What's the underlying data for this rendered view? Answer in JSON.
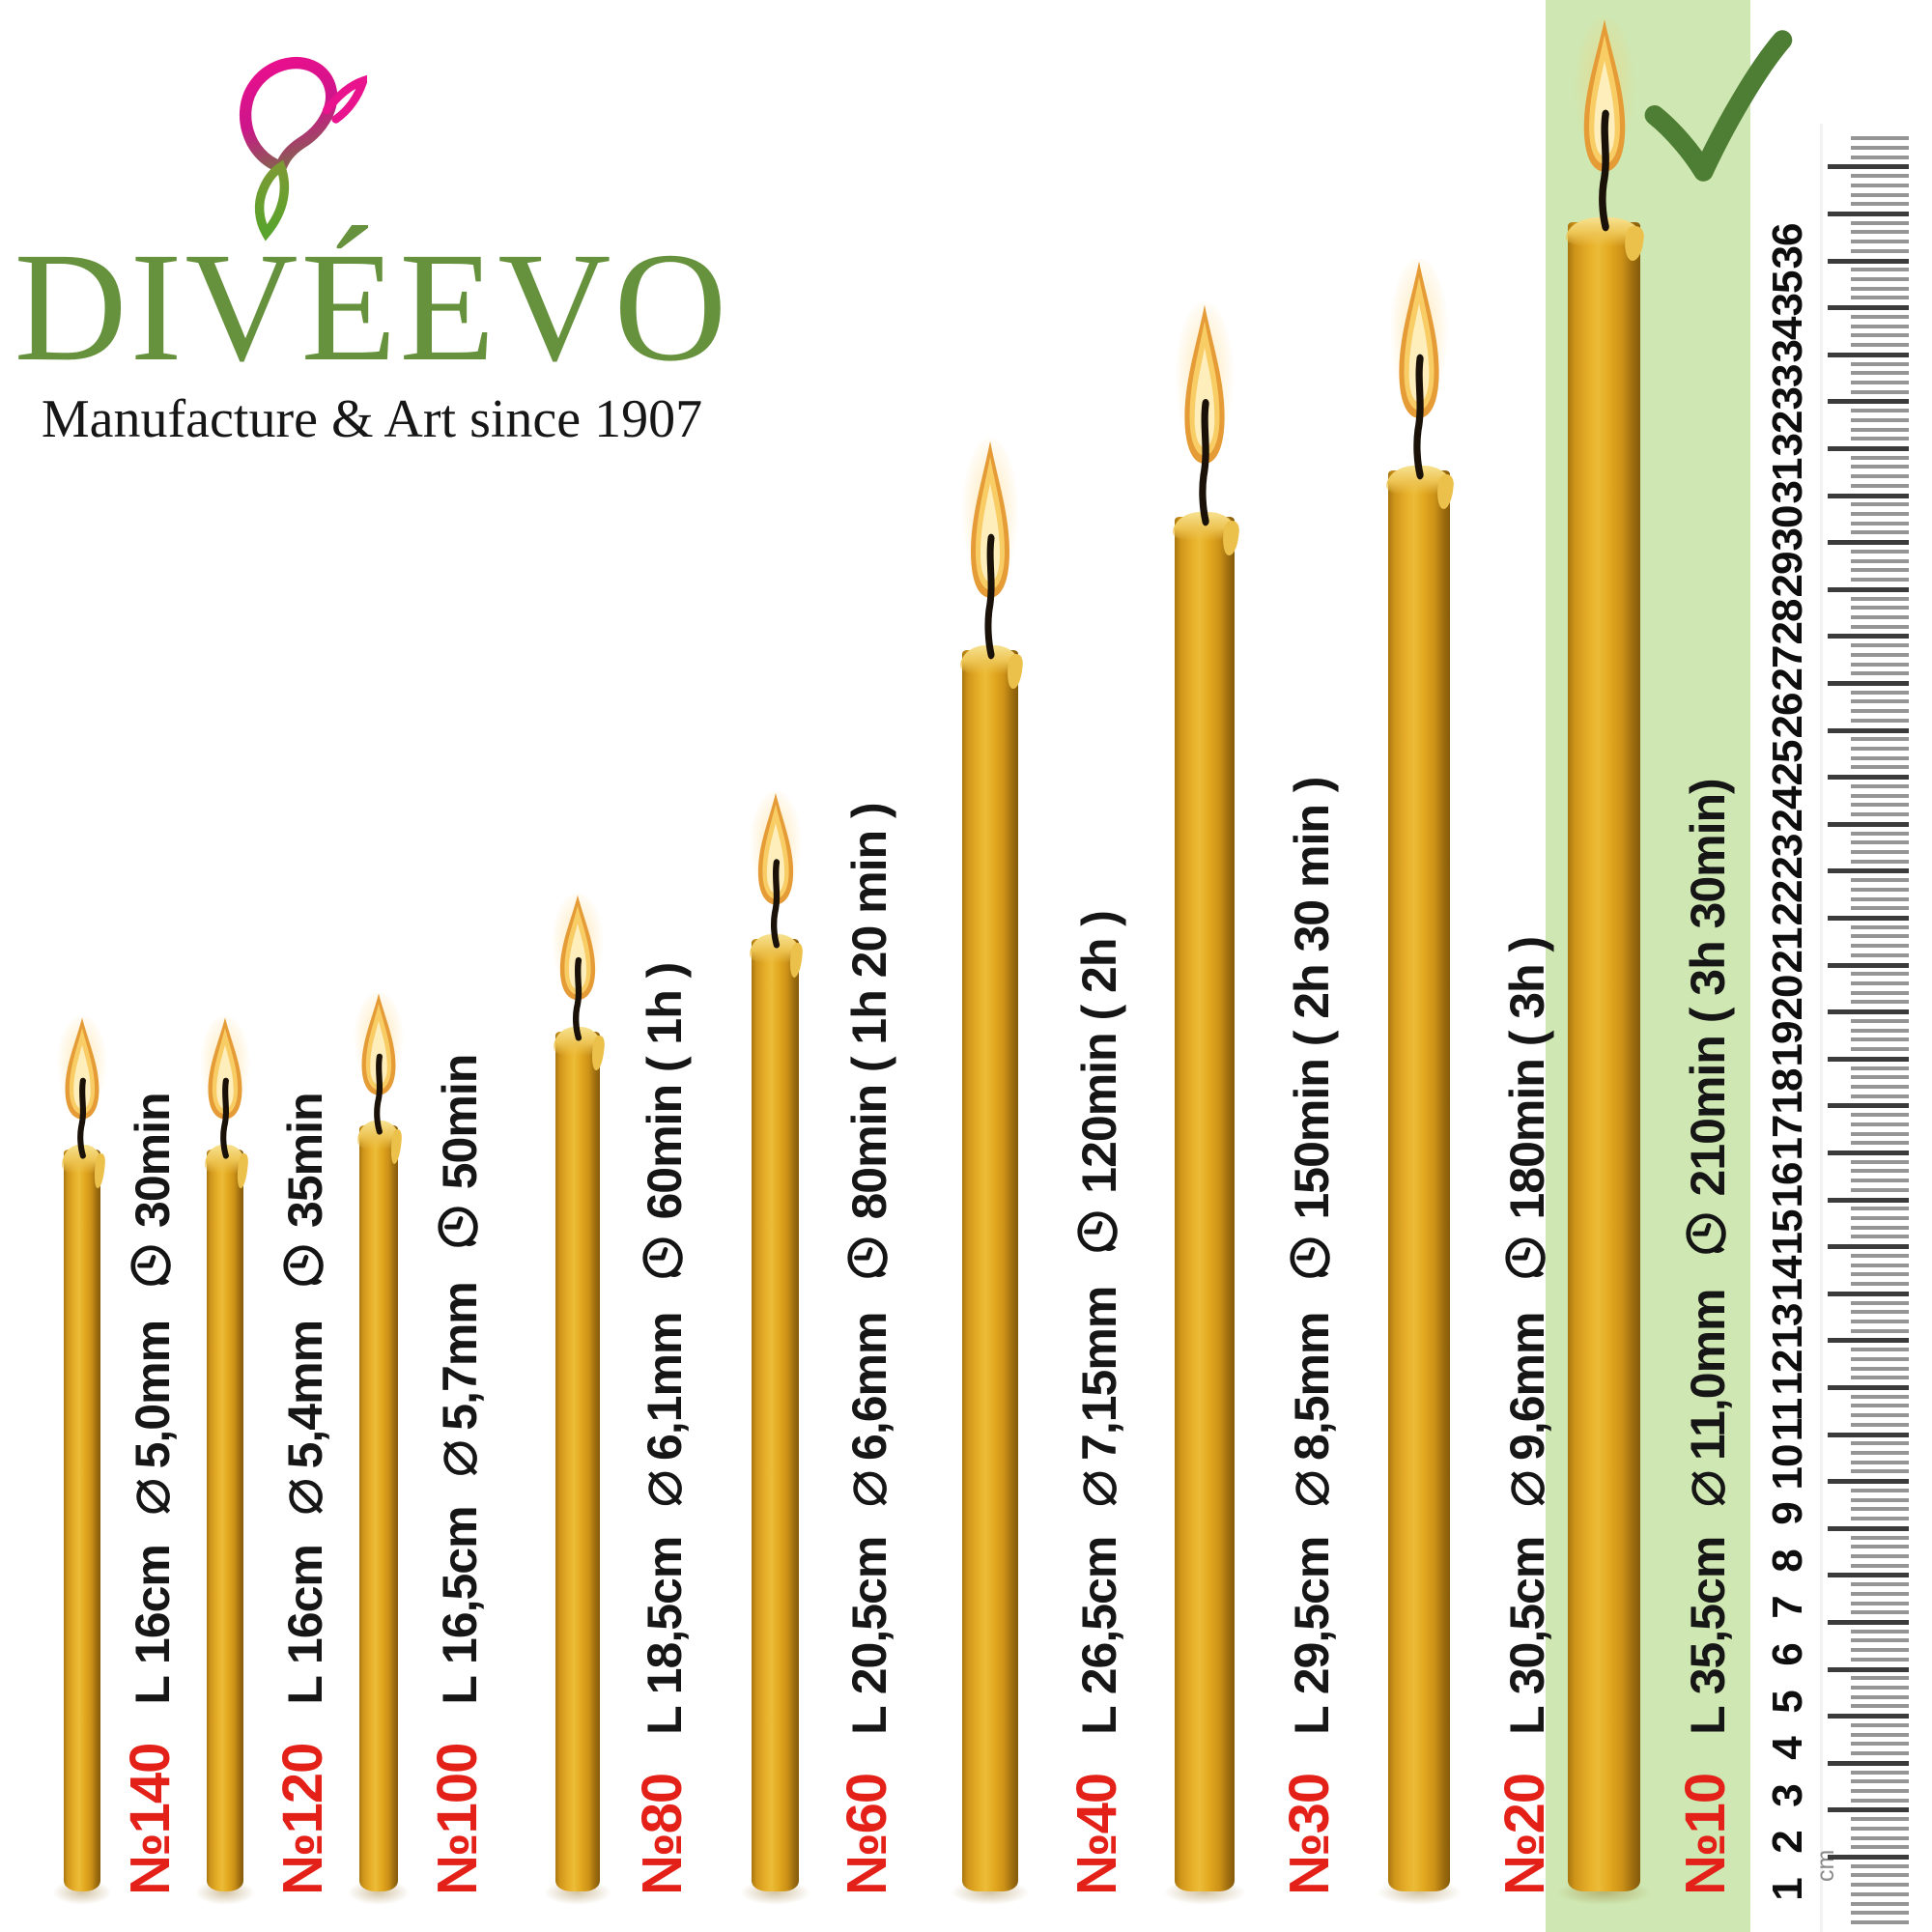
{
  "brand": {
    "name": "DIVÉEVO",
    "tagline": "Manufacture & Art since 1907"
  },
  "candles": [
    {
      "number": "№140",
      "length": "L 16cm",
      "diameter": "5,0mm",
      "burn_time": "30min",
      "highlighted": false
    },
    {
      "number": "№120",
      "length": "L 16cm",
      "diameter": "5,4mm",
      "burn_time": "35min",
      "highlighted": false
    },
    {
      "number": "№100",
      "length": "L 16,5cm",
      "diameter": "5,7mm",
      "burn_time": "50min",
      "highlighted": false
    },
    {
      "number": "№80",
      "length": "L 18,5cm",
      "diameter": "6,1mm",
      "burn_time": "60min ( 1h )",
      "highlighted": false
    },
    {
      "number": "№60",
      "length": "L 20,5cm",
      "diameter": "6,6mm",
      "burn_time": "80min ( 1h 20 min )",
      "highlighted": false
    },
    {
      "number": "№40",
      "length": "L 26,5cm",
      "diameter": "7,15mm",
      "burn_time": "120min ( 2h )",
      "highlighted": false
    },
    {
      "number": "№30",
      "length": "L 29,5cm",
      "diameter": "8,5mm",
      "burn_time": "150min ( 2h 30 min )",
      "highlighted": false
    },
    {
      "number": "№20",
      "length": "L 30,5cm",
      "diameter": "9,6mm",
      "burn_time": "180min ( 3h )",
      "highlighted": false
    },
    {
      "number": "№10",
      "length": "L 35,5cm",
      "diameter": "11,0mm",
      "burn_time": "210min ( 3h 30min)",
      "highlighted": true
    }
  ],
  "symbols": {
    "diameter": "⌀"
  },
  "ruler": {
    "unit": "cm",
    "numbers": [
      1,
      2,
      3,
      4,
      5,
      6,
      7,
      8,
      9,
      10,
      11,
      12,
      13,
      14,
      15,
      16,
      17,
      18,
      19,
      20,
      21,
      22,
      23,
      24,
      25,
      26,
      27,
      28,
      29,
      30,
      31,
      32,
      33,
      34,
      35,
      36
    ]
  },
  "colors": {
    "accent_red": "#e32119",
    "brand_green": "#67923d",
    "highlight_green": "#cfe7b2",
    "candle_amber": "#e0a81f",
    "check_green": "#4e7e33"
  }
}
